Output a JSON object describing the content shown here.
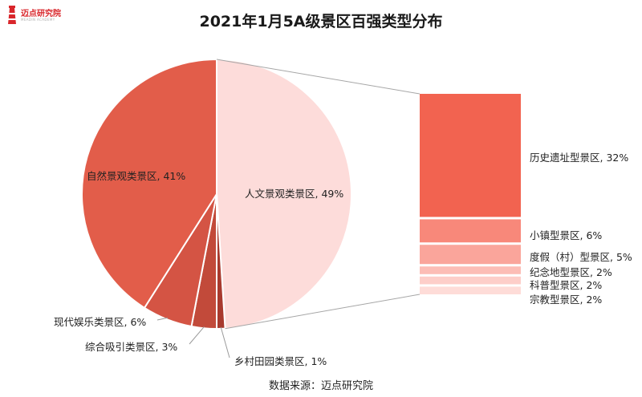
{
  "logo": {
    "text": "迈点研究院",
    "subtext": "MEADIN ACADEMY"
  },
  "colors": {
    "logo_red": "#d9262b",
    "connector": "#a6a6a6"
  },
  "chart_data": {
    "type": "pie",
    "title": "2021年1月5A级景区百强类型分布",
    "source": "数据来源：迈点研究院",
    "slices": [
      {
        "label": "人文景观类景区",
        "value": 49,
        "display": "人文景观类景区, 49%",
        "color": "#fddcda"
      },
      {
        "label": "乡村田园类景区",
        "value": 1,
        "display": "乡村田园类景区, 1%",
        "color": "#a83a2e"
      },
      {
        "label": "综合吸引类景区",
        "value": 3,
        "display": "综合吸引类景区, 3%",
        "color": "#c24a3a"
      },
      {
        "label": "现代娱乐类景区",
        "value": 6,
        "display": "现代娱乐类景区, 6%",
        "color": "#d45444"
      },
      {
        "label": "自然景观类景区",
        "value": 41,
        "display": "自然景观类景区, 41%",
        "color": "#e25d4a"
      }
    ],
    "breakdown": {
      "of": "人文景观类景区",
      "items": [
        {
          "label": "历史遗址型景区",
          "value": 32,
          "display": "历史遗址型景区, 32%",
          "color": "#f26350"
        },
        {
          "label": "小镇型景区",
          "value": 6,
          "display": "小镇型景区, 6%",
          "color": "#f8887a"
        },
        {
          "label": "度假（村）型景区",
          "value": 5,
          "display": "度假（村）型景区, 5%",
          "color": "#faa59b"
        },
        {
          "label": "纪念地型景区",
          "value": 2,
          "display": "纪念地型景区, 2%",
          "color": "#fcbdb6"
        },
        {
          "label": "科普型景区",
          "value": 2,
          "display": "科普型景区, 2%",
          "color": "#fdcec9"
        },
        {
          "label": "宗教型景区",
          "value": 2,
          "display": "宗教型景区, 2%",
          "color": "#fedcd8"
        }
      ]
    }
  }
}
